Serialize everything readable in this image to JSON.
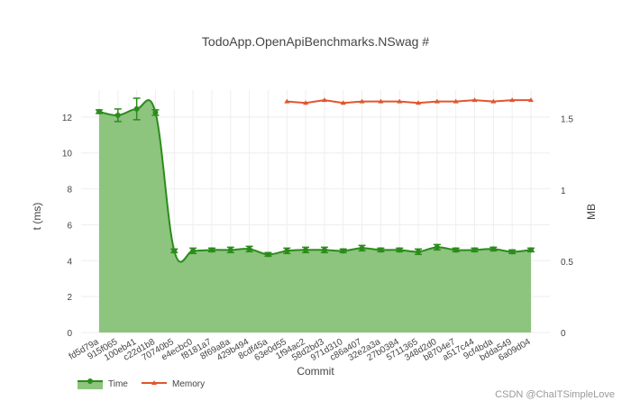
{
  "chart_data": {
    "type": "line",
    "title": "TodoApp.OpenApiBenchmarks.NSwag #",
    "xlabel": "Commit",
    "ylabel": "t (ms)",
    "y2label": "MB",
    "ylim": [
      0,
      13.5
    ],
    "y2lim": [
      0,
      1.7
    ],
    "yticks": [
      0,
      2,
      4,
      6,
      8,
      10,
      12
    ],
    "y2ticks": [
      0,
      0.5,
      1,
      1.5
    ],
    "y2ticklabels": [
      "0",
      "0.5",
      "1",
      "1.5"
    ],
    "categories": [
      "fd5d79a",
      "915f065",
      "100eb41",
      "c22d1b8",
      "70740b5",
      "e4ecbc0",
      "f8181a7",
      "8f69a8a",
      "429b494",
      "8cdf45a",
      "63e0d55",
      "1f94ac2",
      "58d2bd3",
      "971d310",
      "c86a407",
      "32e2a3a",
      "27b0384",
      "5711365",
      "348d2d0",
      "b8704e7",
      "a517c44",
      "9cf4bda",
      "bdda549",
      "6a09d04"
    ],
    "series": [
      {
        "name": "Time",
        "axis": "y",
        "color": "#2b8c1b",
        "fill": "#8dc47e",
        "values": [
          12.3,
          12.1,
          12.45,
          12.25,
          4.55,
          4.55,
          4.6,
          4.6,
          4.65,
          4.35,
          4.55,
          4.6,
          4.6,
          4.55,
          4.7,
          4.6,
          4.6,
          4.5,
          4.75,
          4.6,
          4.6,
          4.65,
          4.5,
          4.6
        ],
        "error": [
          0.1,
          0.35,
          0.6,
          0.15,
          0.1,
          0.15,
          0.1,
          0.15,
          0.15,
          0.1,
          0.15,
          0.15,
          0.15,
          0.1,
          0.15,
          0.1,
          0.1,
          0.15,
          0.15,
          0.1,
          0.1,
          0.1,
          0.1,
          0.1
        ]
      },
      {
        "name": "Memory",
        "axis": "y2",
        "color": "#e1562d",
        "start_index": 10,
        "values": [
          null,
          null,
          null,
          null,
          null,
          null,
          null,
          null,
          null,
          null,
          1.62,
          1.61,
          1.63,
          1.61,
          1.62,
          1.62,
          1.62,
          1.61,
          1.62,
          1.62,
          1.63,
          1.62,
          1.63,
          1.63
        ]
      }
    ],
    "legend_position": "bottom-left",
    "grid": true
  },
  "watermark": "CSDN @ChaITSimpleLove"
}
